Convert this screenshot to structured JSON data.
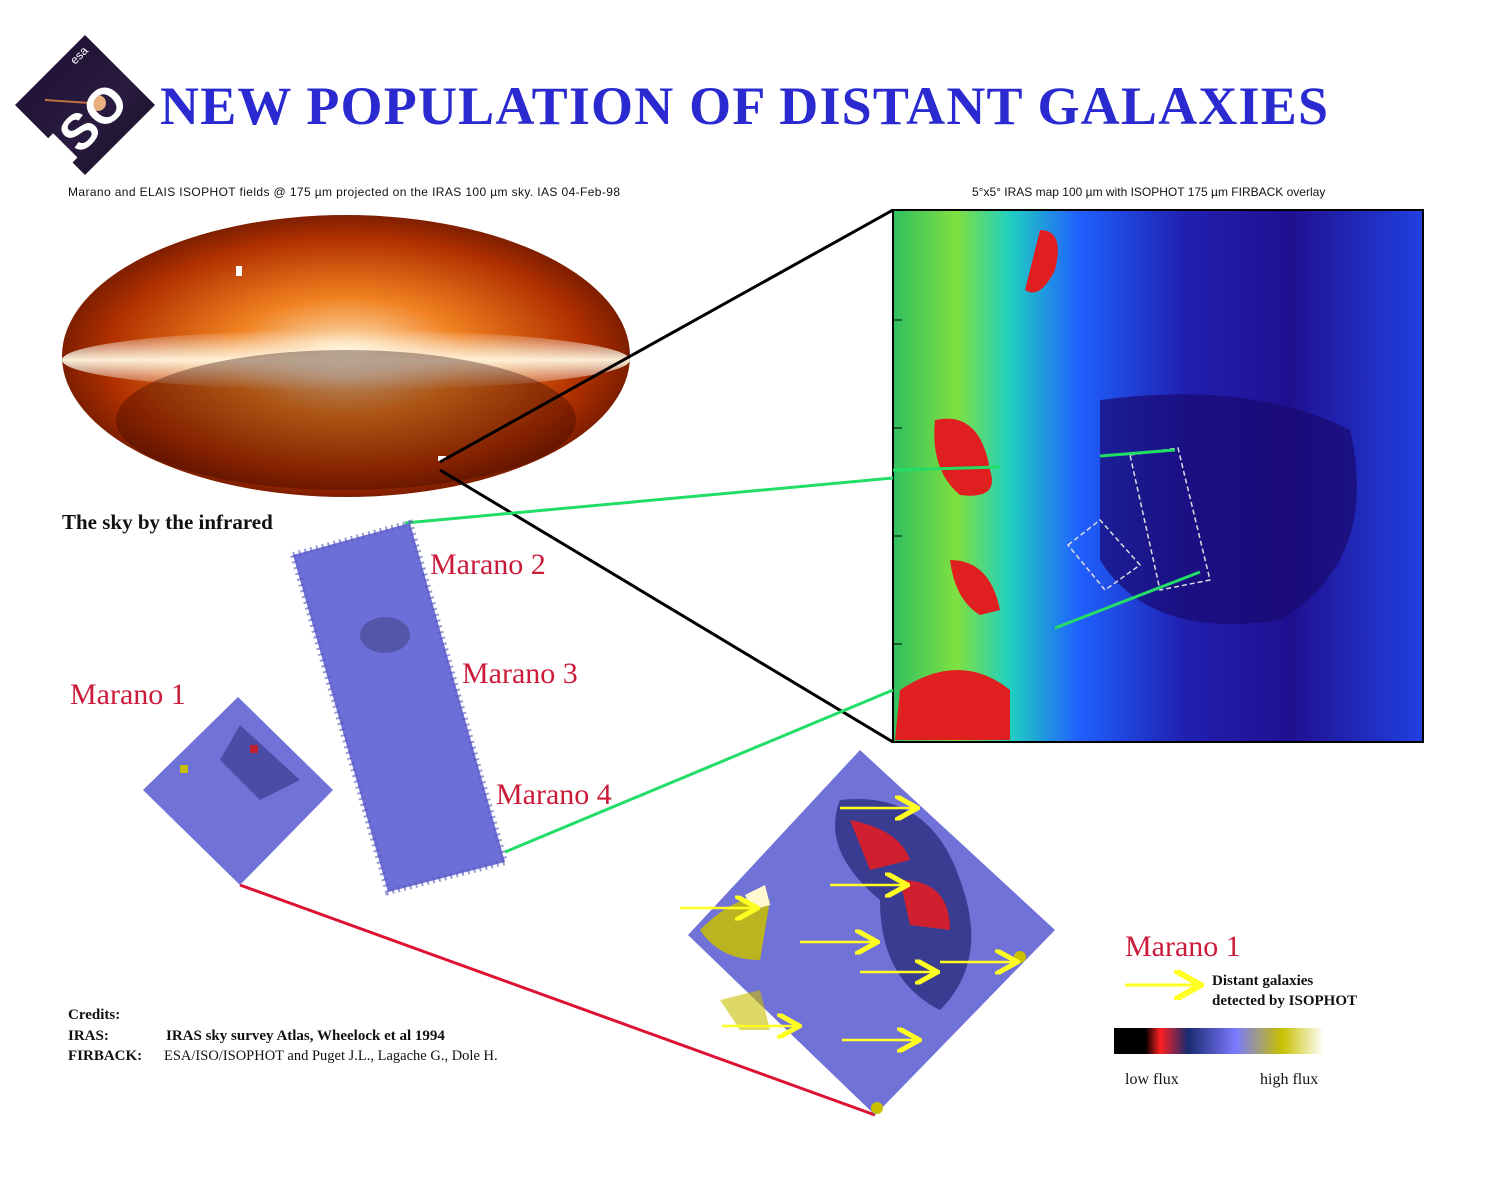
{
  "title": "NEW POPULATION OF DISTANT GALAXIES",
  "logo": {
    "text": "ISO",
    "agency": "esa"
  },
  "sky_map": {
    "caption": "Marano and ELAIS ISOPHOT fields @ 175 µm projected on the IRAS 100 µm sky. IAS 04-Feb-98",
    "label": "The sky by the infrared"
  },
  "iras_map": {
    "caption": "5°x5° IRAS map 100 µm with ISOPHOT  175 µm FIRBACK overlay"
  },
  "fields": {
    "marano1": "Marano 1",
    "marano2": "Marano 2",
    "marano3": "Marano 3",
    "marano4": "Marano 4"
  },
  "legend": {
    "title": "Marano 1",
    "arrow_text_1": "Distant galaxies",
    "arrow_text_2": "detected by ISOPHOT",
    "low": "low flux",
    "high": "high flux",
    "colors": [
      "#000000",
      "#ff2020",
      "#1a2a70",
      "#7a7aff",
      "#c8c000",
      "#ffffff"
    ]
  },
  "credits": {
    "heading": "Credits:",
    "iras_key": "IRAS:",
    "iras_val": "IRAS sky survey Atlas, Wheelock et al 1994",
    "firback_key": "FIRBACK:",
    "firback_val": "ESA/ISO/ISOPHOT and Puget J.L., Lagache G., Dole H."
  },
  "colors": {
    "title": "#2a2ad0",
    "labels": "#cc1a3a",
    "connector_green": "#22dd66",
    "connector_red": "#dd1133",
    "arrows": "#ffff22"
  }
}
